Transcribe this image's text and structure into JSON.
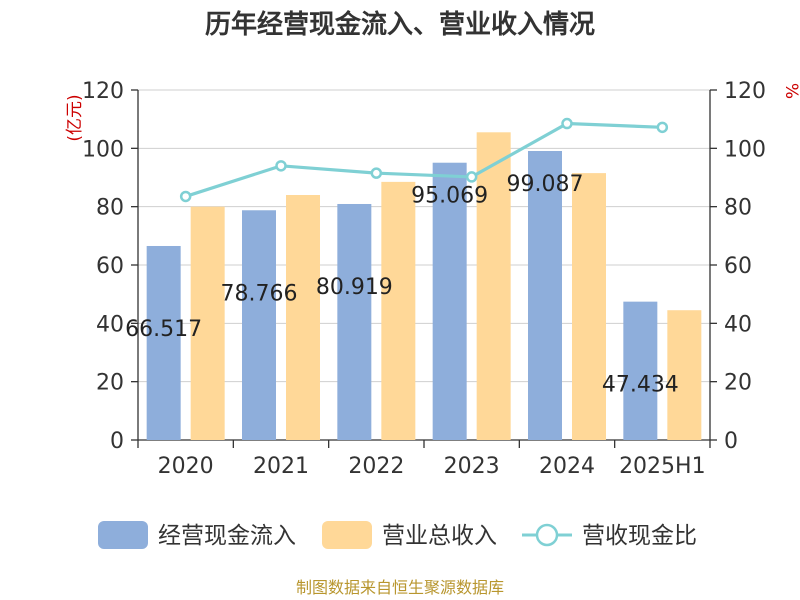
{
  "chart_data": {
    "type": "bar",
    "title": "历年经营现金流入、营业收入情况",
    "categories": [
      "2020",
      "2021",
      "2022",
      "2023",
      "2024",
      "2025H1"
    ],
    "series": [
      {
        "name": "经营现金流入",
        "kind": "bar",
        "axis": "left",
        "color": "#8eaedb",
        "values": [
          66.517,
          78.766,
          80.919,
          95.069,
          99.087,
          47.434
        ]
      },
      {
        "name": "营业总收入",
        "kind": "bar",
        "axis": "left",
        "color": "#ffd898",
        "values": [
          80.0,
          84.0,
          88.5,
          105.5,
          91.5,
          44.5
        ]
      },
      {
        "name": "营收现金比",
        "kind": "line",
        "axis": "right",
        "color": "#7fd0d4",
        "values": [
          83.5,
          94.0,
          91.5,
          90.2,
          108.5,
          107.2
        ]
      }
    ],
    "data_labels": [
      "66.517",
      "78.766",
      "80.919",
      "95.069",
      "99.087",
      "47.434"
    ],
    "y_left": {
      "unit": "(亿元)",
      "ylim": [
        0,
        120
      ],
      "ticks": [
        0,
        20,
        40,
        60,
        80,
        100,
        120
      ]
    },
    "y_right": {
      "unit": "%",
      "ylim": [
        0,
        120
      ],
      "ticks": [
        0,
        20,
        40,
        60,
        80,
        100,
        120
      ]
    },
    "grid": true,
    "legend_position": "bottom",
    "source": "制图数据来自恒生聚源数据库"
  }
}
